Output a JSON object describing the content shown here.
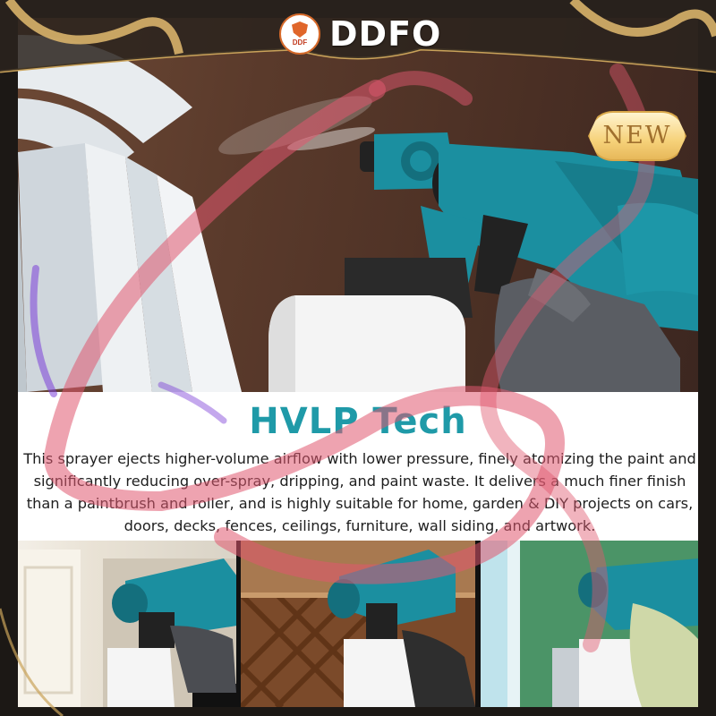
{
  "brand": {
    "name": "DDFO",
    "logo_text": "DDF"
  },
  "badge": {
    "label": "NEW"
  },
  "headline": "HVLP Tech",
  "body_text": "This sprayer ejects higher-volume airflow with lower pressure, finely atomizing the paint and significantly reducing over-spray, dripping, and paint waste. It delivers a much finer finish than a paintbrush and roller, and is highly suitable for home, garden & DIY projects on cars, doors, decks, fences, ceilings, furniture, wall siding, and artwork.",
  "colors": {
    "headline": "#1f9aa8",
    "sprayer_body": "#1b8fa0",
    "frame_gold": "#c9a25a",
    "ribbon": "#e0586f"
  },
  "icons": {
    "brand_logo": "shield-logo-icon",
    "decor": "ribbon-decoration"
  }
}
